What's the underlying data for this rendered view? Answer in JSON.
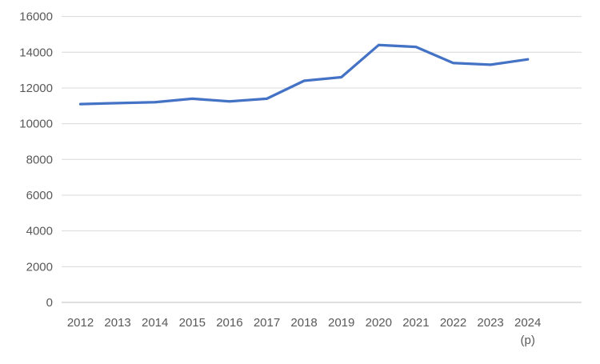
{
  "chart_data": {
    "type": "line",
    "title": "",
    "xlabel": "",
    "ylabel": "",
    "categories": [
      "2012",
      "2013",
      "2014",
      "2015",
      "2016",
      "2017",
      "2018",
      "2019",
      "2020",
      "2021",
      "2022",
      "2023",
      "2024"
    ],
    "values": [
      11100,
      11150,
      11200,
      11400,
      11250,
      11400,
      12400,
      12600,
      14400,
      14300,
      13400,
      13300,
      13600
    ],
    "last_category_note": "(p)",
    "ylim": [
      0,
      16000
    ],
    "y_tick_step": 2000,
    "y_tick_labels": [
      "0",
      "2000",
      "4000",
      "6000",
      "8000",
      "10000",
      "12000",
      "14000",
      "16000"
    ],
    "grid": true,
    "legend": "none",
    "colors": {
      "series": "#4472C4",
      "gridline": "#D9D9D9",
      "axis_line": "#BFBFBF",
      "tick_label": "#595959",
      "background": "#FFFFFF"
    }
  }
}
